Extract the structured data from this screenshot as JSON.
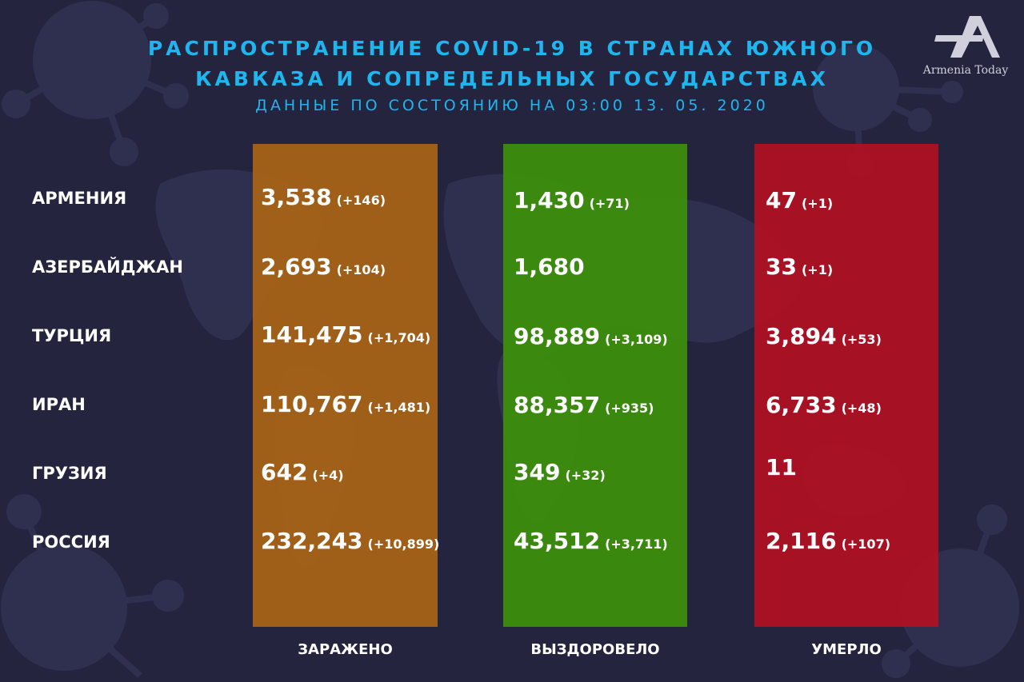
{
  "header": {
    "title_line1": "РАСПРОСТРАНЕНИЕ COVID-19 В СТРАНАХ ЮЖНОГО",
    "title_line2": "КАВКАЗА И СОПРЕДЕЛЬНЫХ ГОСУДАРСТВАХ",
    "subtitle": "ДАННЫЕ ПО СОСТОЯНИЮ НА 03:00  13. 05. 2020"
  },
  "logo": {
    "text": "Armenia Today",
    "mark": "TA"
  },
  "columns": {
    "infected": "ЗАРАЖЕНО",
    "recovered": "ВЫЗДОРОВЕЛО",
    "deaths": "УМЕРЛО"
  },
  "colors": {
    "background": "#24243e",
    "title": "#1fb6f0",
    "infected": "#ab6516",
    "recovered": "#3c8f0c",
    "deaths": "#b11022"
  },
  "rows": [
    {
      "country": "АРМЕНИЯ",
      "infected": "3,538",
      "infected_delta": "(+146)",
      "recovered": "1,430",
      "recovered_delta": "(+71)",
      "deaths": "47",
      "deaths_delta": "(+1)"
    },
    {
      "country": "АЗЕРБАЙДЖАН",
      "infected": "2,693",
      "infected_delta": "(+104)",
      "recovered": "1,680",
      "recovered_delta": "",
      "deaths": "33",
      "deaths_delta": "(+1)"
    },
    {
      "country": "ТУРЦИЯ",
      "infected": "141,475",
      "infected_delta": "(+1,704)",
      "recovered": "98,889",
      "recovered_delta": "(+3,109)",
      "deaths": "3,894",
      "deaths_delta": "(+53)"
    },
    {
      "country": "ИРАН",
      "infected": "110,767",
      "infected_delta": "(+1,481)",
      "recovered": "88,357",
      "recovered_delta": "(+935)",
      "deaths": "6,733",
      "deaths_delta": "(+48)"
    },
    {
      "country": "ГРУЗИЯ",
      "infected": "642",
      "infected_delta": "(+4)",
      "recovered": "349",
      "recovered_delta": "(+32)",
      "deaths": "11",
      "deaths_delta": ""
    },
    {
      "country": "РОССИЯ",
      "infected": "232,243",
      "infected_delta": "(+10,899)",
      "recovered": "43,512",
      "recovered_delta": "(+3,711)",
      "deaths": "2,116",
      "deaths_delta": "(+107)"
    }
  ]
}
